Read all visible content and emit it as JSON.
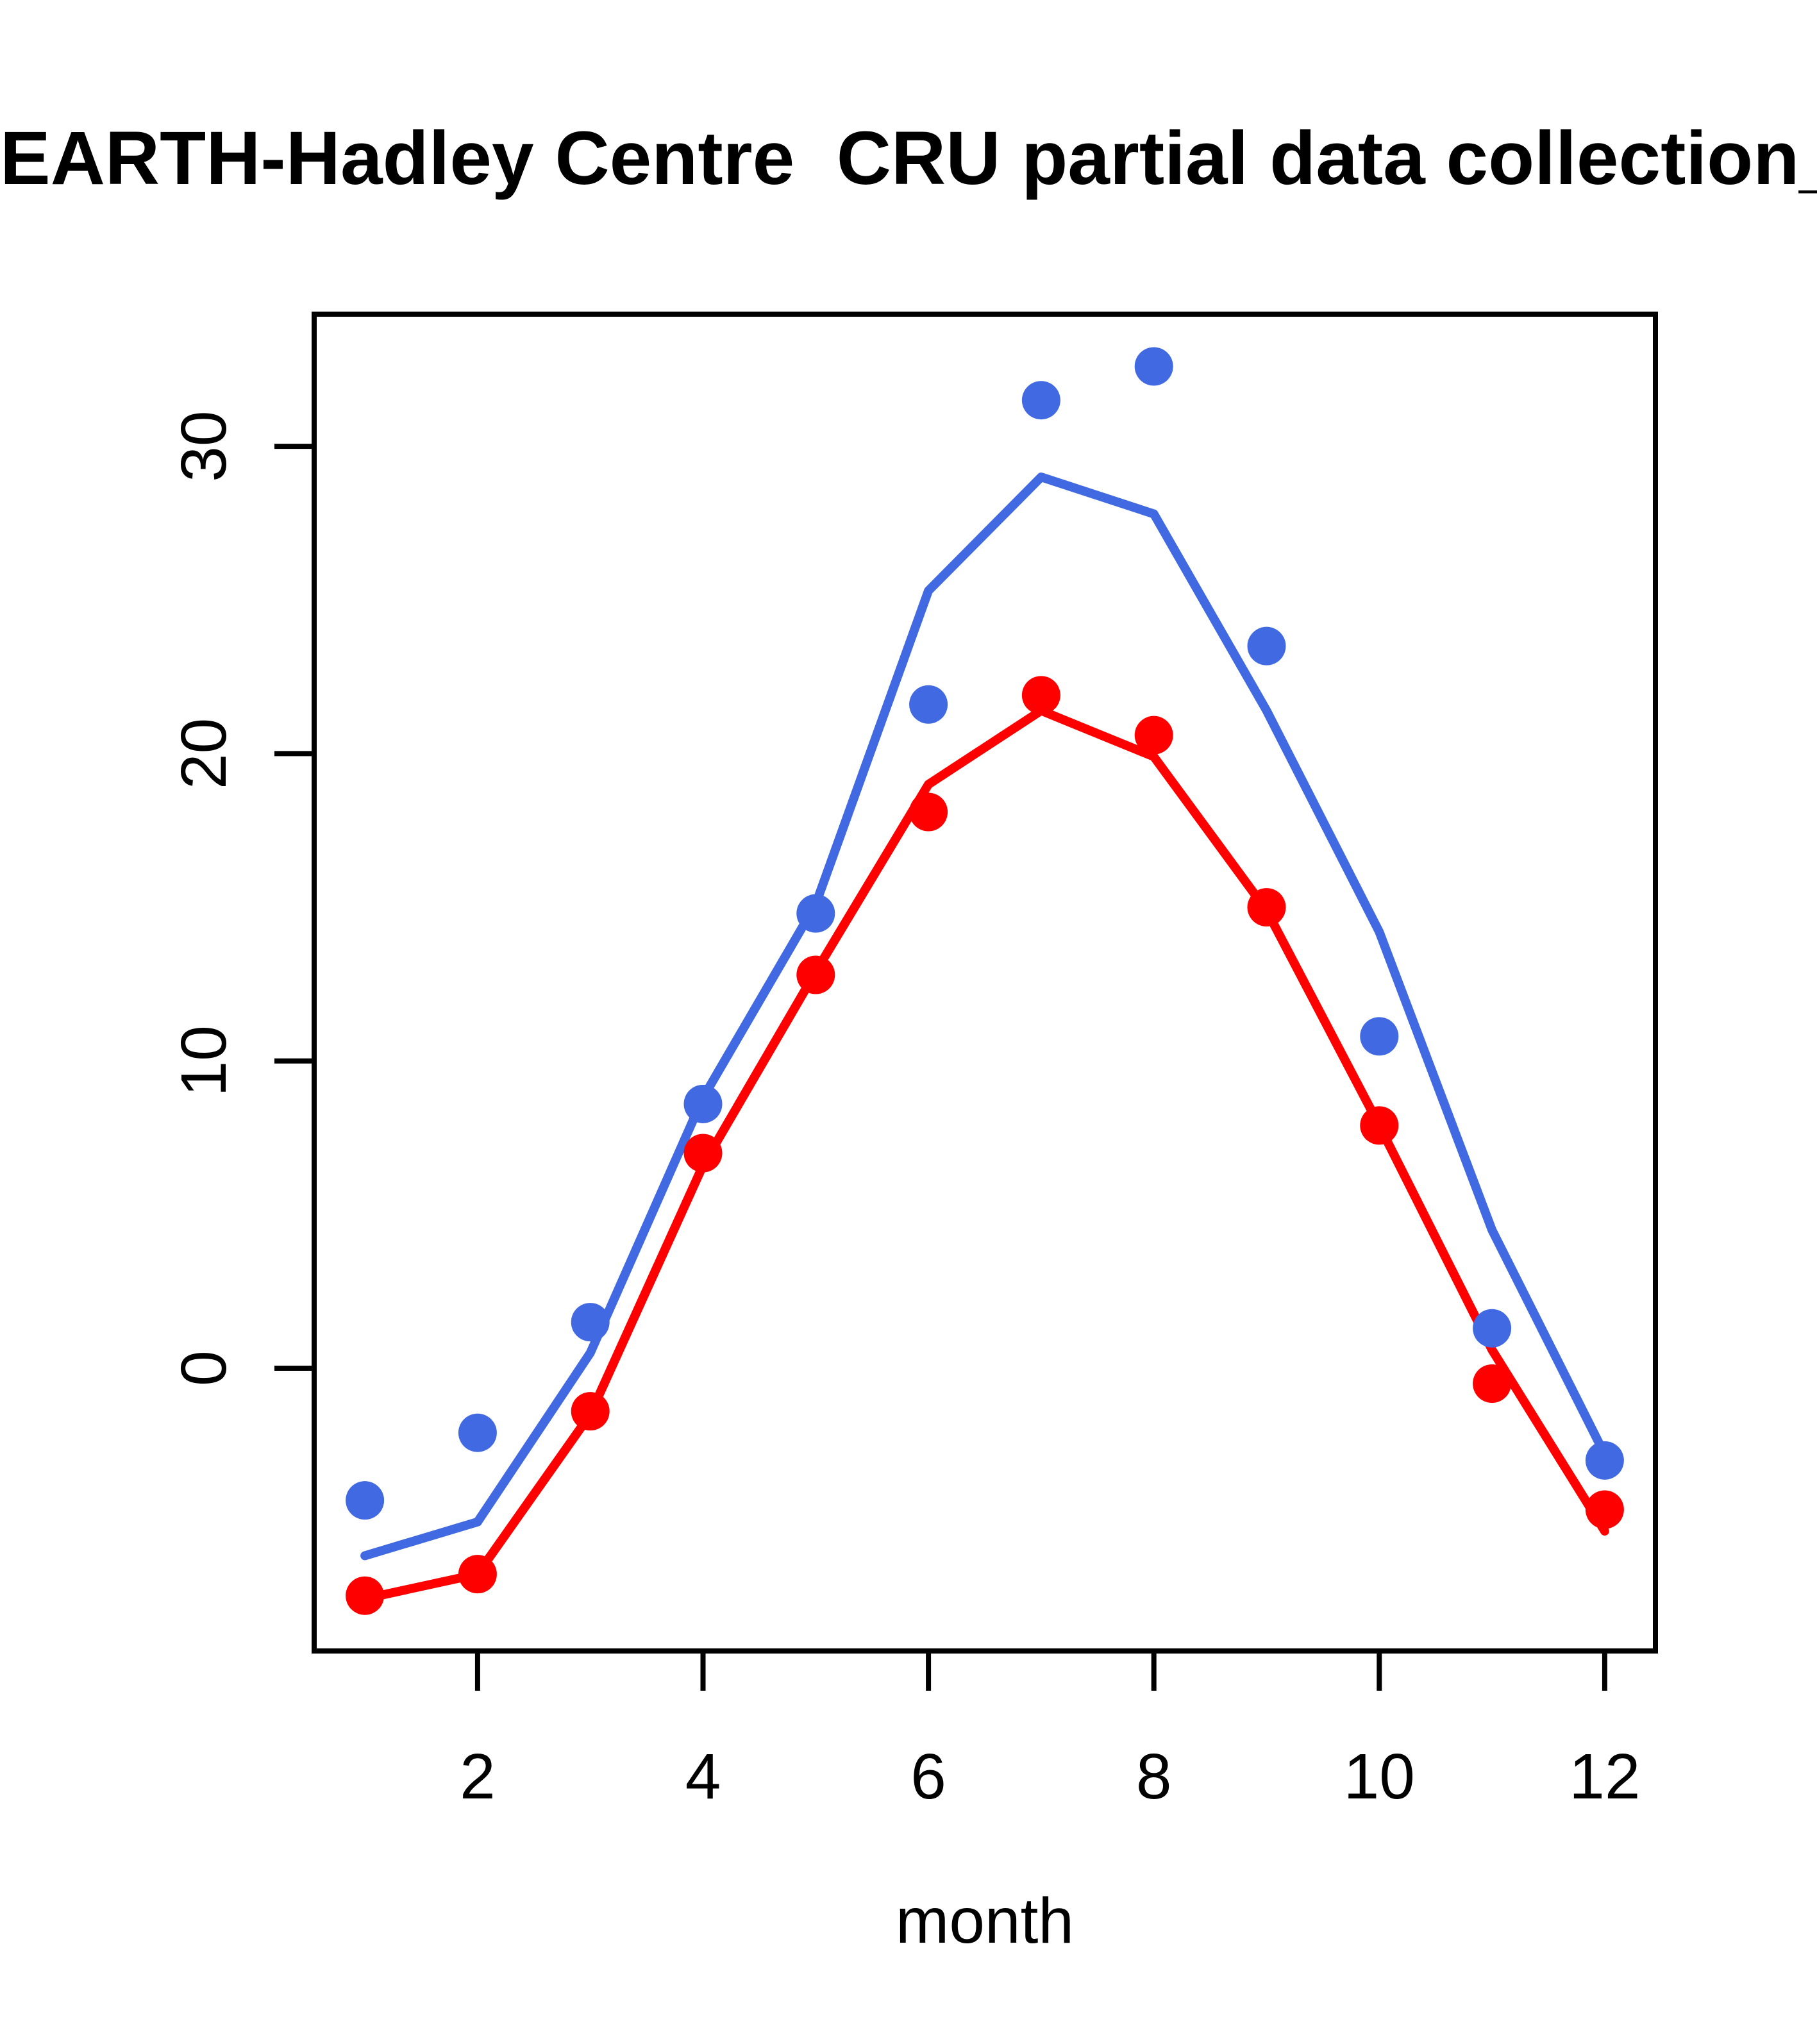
{
  "title": "EARTH-Hadley Centre  CRU partial data collection_",
  "xlabel": "month",
  "colors": {
    "blue": "#4169E1",
    "red": "#FF0000",
    "axis": "#000000",
    "background": "#FFFFFF"
  },
  "chart_data": {
    "type": "line",
    "subtype": "lines-with-scatter-points",
    "title": "EARTH-Hadley Centre  CRU partial data collection_",
    "xlabel": "month",
    "ylabel": "",
    "x": [
      1,
      2,
      3,
      4,
      5,
      6,
      7,
      8,
      9,
      10,
      11,
      12
    ],
    "xticks": [
      2,
      4,
      6,
      8,
      10,
      12
    ],
    "yticks": [
      0,
      10,
      20,
      30
    ],
    "xlim": [
      0.55,
      12.45
    ],
    "ylim": [
      -9.2,
      34.3
    ],
    "grid": false,
    "legend_position": "none",
    "series": [
      {
        "name": "blue-scatter-points",
        "kind": "points",
        "color": "#4169E1",
        "values": [
          -4.3,
          -2.1,
          1.5,
          8.6,
          14.8,
          21.6,
          31.5,
          32.6,
          23.5,
          10.8,
          1.3,
          -3.0
        ]
      },
      {
        "name": "red-scatter-points",
        "kind": "points",
        "color": "#FF0000",
        "values": [
          -7.4,
          -6.7,
          -1.4,
          7.0,
          12.8,
          18.1,
          21.9,
          20.6,
          15.0,
          7.9,
          -0.5,
          -4.6
        ]
      },
      {
        "name": "blue-line",
        "kind": "line",
        "color": "#4169E1",
        "values": [
          -6.1,
          -5.0,
          0.5,
          8.8,
          15.1,
          25.3,
          29.0,
          27.8,
          21.4,
          14.2,
          4.5,
          -2.8
        ]
      },
      {
        "name": "red-line",
        "kind": "line",
        "color": "#FF0000",
        "values": [
          -7.5,
          -6.7,
          -1.5,
          6.6,
          12.9,
          19.0,
          21.4,
          19.9,
          14.9,
          7.9,
          0.6,
          -5.3
        ]
      }
    ]
  }
}
